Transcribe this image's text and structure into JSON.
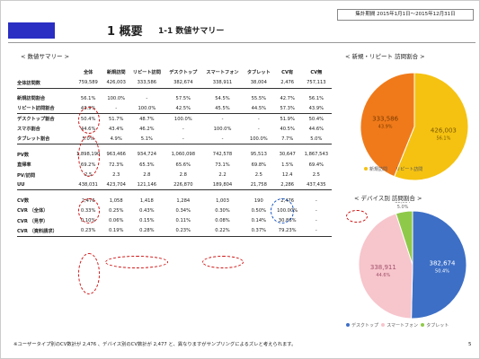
{
  "header": {
    "title": "1 概要",
    "subtitle": "1-1 数値サマリー",
    "period": "集計期間 2015年1月1日～2015年12月31日"
  },
  "table_section_label": "< 数値サマリー >",
  "columns": [
    "全体",
    "新規訪問",
    "リピート訪問",
    "デスクトップ",
    "スマートフォン",
    "タブレット",
    "CV有",
    "CV無"
  ],
  "rows": [
    {
      "label": "全体訪問数",
      "values": [
        "759,589",
        "426,003",
        "333,586",
        "382,674",
        "338,911",
        "38,004",
        "2,476",
        "757,113"
      ],
      "line": true
    },
    {
      "gap": true
    },
    {
      "label": "新規訪問割合",
      "values": [
        "56.1%",
        "100.0%",
        "-",
        "57.5%",
        "54.5%",
        "55.5%",
        "42.7%",
        "56.1%"
      ]
    },
    {
      "label": "リピート訪問割合",
      "values": [
        "43.9%",
        "-",
        "100.0%",
        "42.5%",
        "45.5%",
        "44.5%",
        "57.3%",
        "43.9%"
      ],
      "line": true
    },
    {
      "label": "デスクトップ割合",
      "values": [
        "50.4%",
        "51.7%",
        "48.7%",
        "100.0%",
        "-",
        "-",
        "51.9%",
        "50.4%"
      ]
    },
    {
      "label": "スマホ割合",
      "values": [
        "44.6%",
        "43.4%",
        "46.2%",
        "-",
        "100.0%",
        "-",
        "40.5%",
        "44.6%"
      ]
    },
    {
      "label": "タブレット割合",
      "values": [
        "5.0%",
        "4.9%",
        "5.1%",
        "-",
        "-",
        "100.0%",
        "7.7%",
        "5.0%"
      ],
      "line": true
    },
    {
      "gap": true
    },
    {
      "label": "PV数",
      "values": [
        "1,898,190",
        "963,466",
        "934,724",
        "1,060,098",
        "742,578",
        "95,513",
        "30,647",
        "1,867,543"
      ]
    },
    {
      "label": "直帰率",
      "values": [
        "69.2%",
        "72.3%",
        "65.3%",
        "65.6%",
        "73.1%",
        "69.8%",
        "1.5%",
        "69.4%"
      ]
    },
    {
      "label": "PV/訪問",
      "values": [
        "2.5",
        "2.3",
        "2.8",
        "2.8",
        "2.2",
        "2.5",
        "12.4",
        "2.5"
      ]
    },
    {
      "label": "UU",
      "values": [
        "438,031",
        "423,704",
        "121,146",
        "226,870",
        "189,804",
        "21,758",
        "2,286",
        "437,435"
      ],
      "line": true
    },
    {
      "gap": true
    },
    {
      "label": "CV数",
      "values": [
        "2,476",
        "1,058",
        "1,418",
        "1,284",
        "1,003",
        "190",
        "2,476",
        "-"
      ]
    },
    {
      "label": "CVR （全体）",
      "values": [
        "0.33%",
        "0.25%",
        "0.43%",
        "0.34%",
        "0.30%",
        "0.50%",
        "100.00%",
        "-"
      ]
    },
    {
      "label": "CVR （見学）",
      "values": [
        "0.10%",
        "0.06%",
        "0.15%",
        "0.11%",
        "0.08%",
        "0.14%",
        "30.86%",
        "-"
      ]
    },
    {
      "label": "CVR （資料請求）",
      "values": [
        "0.23%",
        "0.19%",
        "0.28%",
        "0.23%",
        "0.22%",
        "0.37%",
        "79.23%",
        "-"
      ],
      "line": true
    }
  ],
  "pie1": {
    "label": "< 新規・リピート 訪問割合 >",
    "slices": [
      {
        "name": "新規訪問",
        "value": 426003,
        "display": "426,003",
        "pct": "56.1%",
        "color": "#f5c211"
      },
      {
        "name": "リピート訪問",
        "value": 333586,
        "display": "333,586",
        "pct": "43.9%",
        "color": "#f07a1a"
      }
    ]
  },
  "pie2": {
    "label": "< デバイス別 訪問割合 >",
    "slices": [
      {
        "name": "デスクトップ",
        "value": 382674,
        "display": "382,674",
        "pct": "50.4%",
        "color": "#3d6fc6"
      },
      {
        "name": "スマートフォン",
        "value": 338911,
        "display": "338,911",
        "pct": "44.6%",
        "color": "#f7c5cc"
      },
      {
        "name": "タブレット",
        "value": 38004,
        "display": "38,004",
        "pct": "5.0%",
        "color": "#8fc94a"
      }
    ]
  },
  "footnote": "※ユーザータイプ別のCV数計が 2,476 、デバイス別のCV数計が 2,477 と、異なりますがサンプリングによるズレと考えられます。",
  "page_number": "5"
}
